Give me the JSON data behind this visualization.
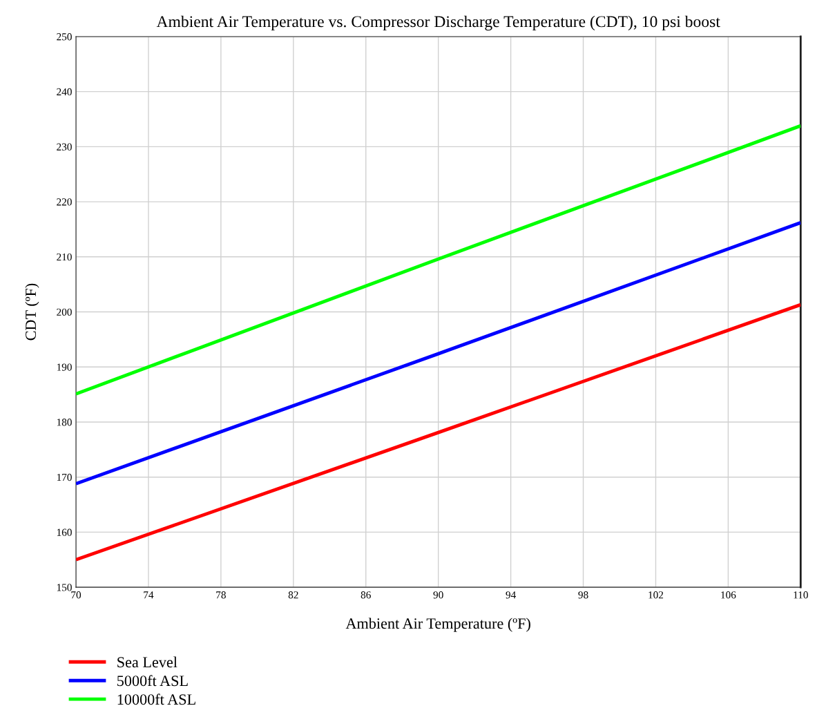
{
  "chart_data": {
    "type": "line",
    "title": "Ambient Air Temperature vs. Compressor Discharge Temperature (CDT), 10 psi boost",
    "xlabel": "Ambient Air Temperature (ºF)",
    "ylabel": "CDT (ºF)",
    "x": [
      70,
      90,
      110
    ],
    "series": [
      {
        "name": "Sea Level",
        "color": "#ff0000",
        "values": [
          155.0,
          178.1,
          201.3
        ]
      },
      {
        "name": "5000ft ASL",
        "color": "#0000ff",
        "values": [
          168.8,
          192.4,
          216.2
        ]
      },
      {
        "name": "10000ft ASL",
        "color": "#00ff00",
        "values": [
          185.1,
          209.6,
          233.8
        ]
      }
    ],
    "xlim": [
      70,
      110
    ],
    "xticks": [
      70,
      74,
      78,
      82,
      86,
      90,
      94,
      98,
      102,
      106,
      110
    ],
    "ylim": [
      150,
      250
    ],
    "yticks": [
      150,
      160,
      170,
      180,
      190,
      200,
      210,
      220,
      230,
      240,
      250
    ],
    "grid": true,
    "legend": "bottom left",
    "marker": "none",
    "line_style": "solid"
  }
}
